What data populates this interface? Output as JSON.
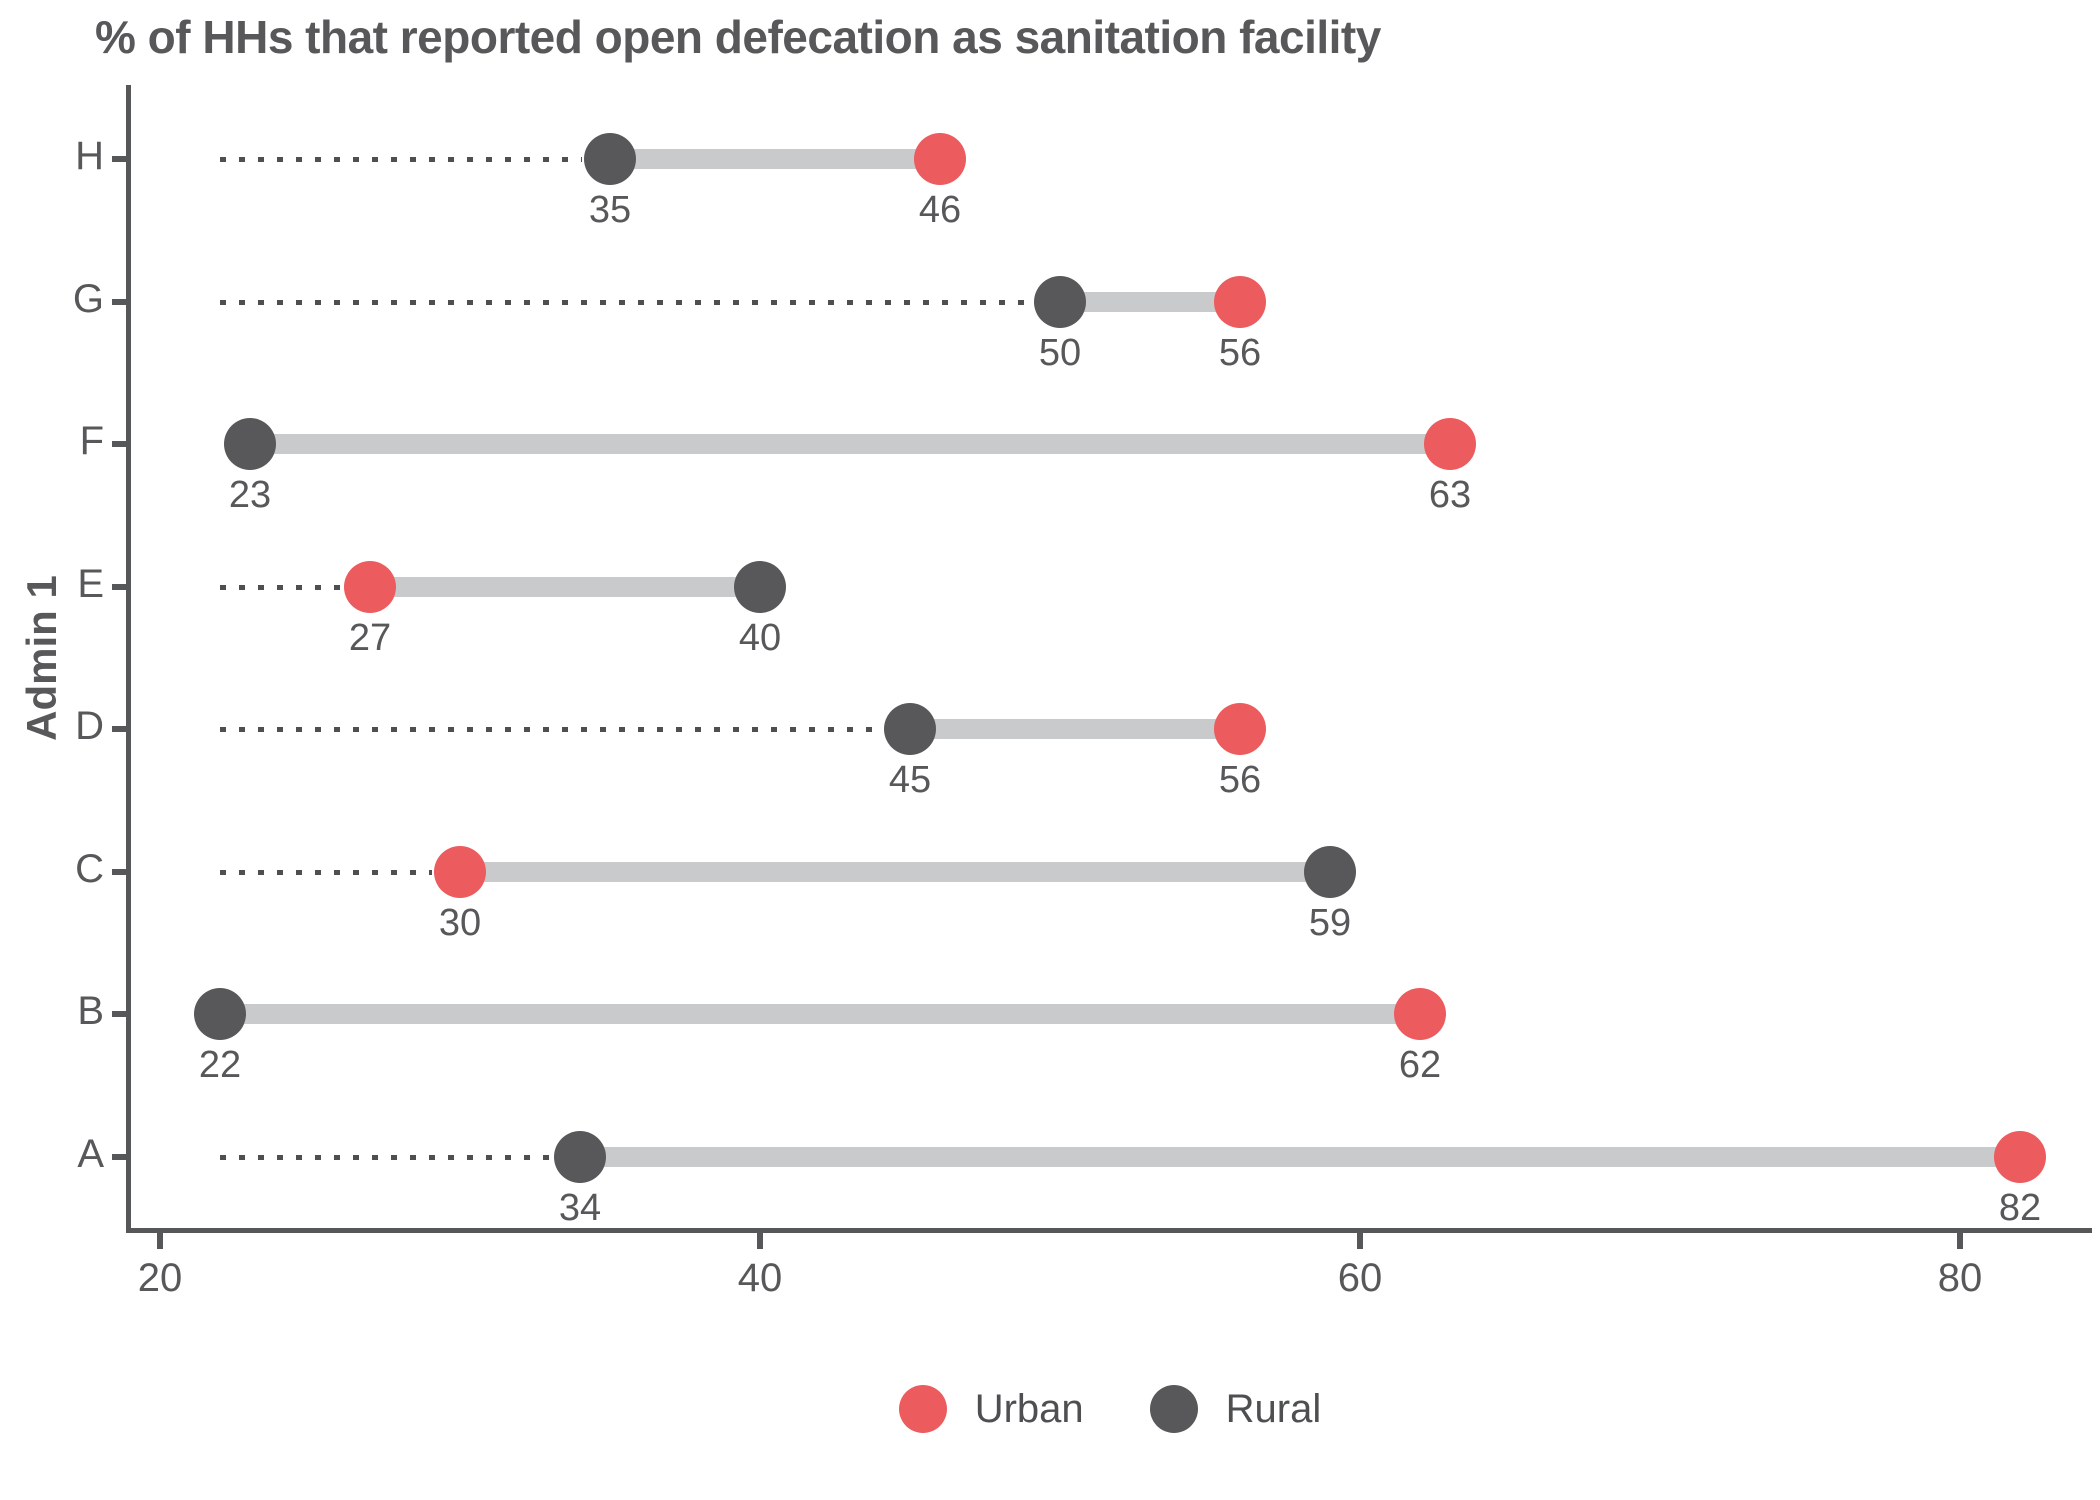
{
  "chart_data": {
    "type": "dumbbell",
    "title": "% of HHs that reported open defecation as sanitation facility",
    "ylabel": "Admin 1",
    "xlabel": "",
    "categories": [
      "H",
      "G",
      "F",
      "E",
      "D",
      "C",
      "B",
      "A"
    ],
    "series": [
      {
        "name": "Urban",
        "color": "#EC5B5E",
        "values": [
          46,
          56,
          63,
          27,
          56,
          30,
          62,
          82
        ]
      },
      {
        "name": "Rural",
        "color": "#58585A",
        "values": [
          35,
          50,
          23,
          40,
          45,
          59,
          22,
          34
        ]
      }
    ],
    "xticks": [
      20,
      40,
      60,
      80
    ],
    "xlim": [
      18.9,
      84.2
    ],
    "grid": "off",
    "connector_color": "#C9CACC",
    "dotted_leader": [
      true,
      true,
      false,
      true,
      true,
      true,
      false,
      true
    ],
    "leader_start_value": 22,
    "legend_position": "bottom",
    "legend": [
      {
        "label": "Urban",
        "color": "#EC5B5E"
      },
      {
        "label": "Rural",
        "color": "#58585A"
      }
    ]
  }
}
